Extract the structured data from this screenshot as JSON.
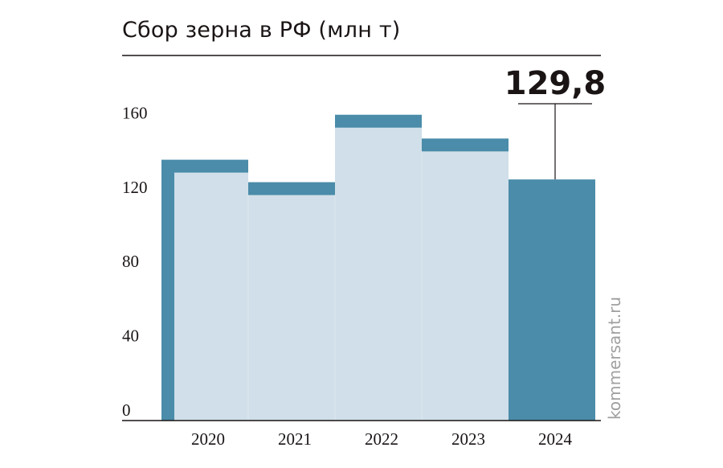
{
  "title": "Сбор зерна в РФ (млн т)",
  "source": "kommersant.ru",
  "highlight_label": "129,8",
  "chart_data": {
    "type": "bar",
    "title": "Сбор зерна в РФ (млн т)",
    "categories": [
      "2020",
      "2021",
      "2022",
      "2023",
      "2024"
    ],
    "values": [
      133.5,
      121.4,
      157.7,
      144.9,
      129.8
    ],
    "yticks": [
      "0",
      "40",
      "80",
      "120",
      "160"
    ],
    "ylim": [
      0,
      180
    ],
    "grid": false,
    "highlight": {
      "category": "2024",
      "label": "129,8"
    },
    "colors": {
      "fill": "#d0dfe9",
      "outline": "#4a8ca9",
      "highlight": "#4a8ca9",
      "axis": "#1a1414"
    }
  }
}
